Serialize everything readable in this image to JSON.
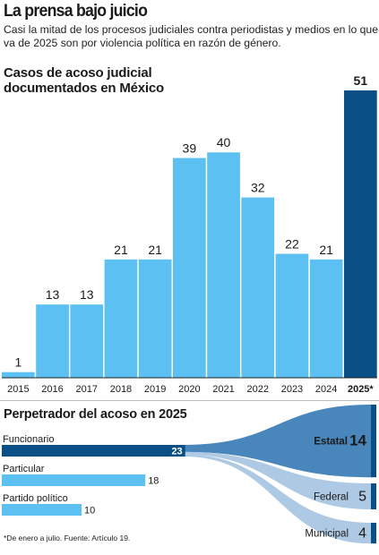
{
  "header": {
    "title": "La prensa bajo juicio",
    "subtitle": "Casi la mitad de los procesos judiciales contra periodistas y medios en lo que va de 2025 son por violencia política en razón de género."
  },
  "colors": {
    "bar": "#5cc0f2",
    "bar_highlight": "#0a4f86",
    "flow_main": "#3e7fb8",
    "flow_light": "#9fc0df",
    "node": "#0a4f86",
    "text": "#1a1a1a"
  },
  "chart_data": [
    {
      "type": "bar",
      "title": "Casos de acoso judicial documentados en México",
      "categories": [
        "2015",
        "2016",
        "2017",
        "2018",
        "2019",
        "2020",
        "2021",
        "2022",
        "2023",
        "2024",
        "2025*"
      ],
      "values": [
        1,
        13,
        13,
        21,
        21,
        39,
        40,
        32,
        22,
        21,
        51
      ],
      "highlight_index": 10,
      "ylim": [
        0,
        51
      ],
      "grid": false
    },
    {
      "type": "sankey",
      "title": "Perpetrador del acoso en 2025",
      "sources": [
        {
          "name": "Funcionario",
          "value": 23
        },
        {
          "name": "Particular",
          "value": 18
        },
        {
          "name": "Partido político",
          "value": 10
        }
      ],
      "targets": [
        {
          "name": "Estatal",
          "value": 14
        },
        {
          "name": "Federal",
          "value": 5
        },
        {
          "name": "Municipal",
          "value": 4
        }
      ],
      "flows": [
        {
          "from": "Funcionario",
          "to": "Estatal",
          "value": 14
        },
        {
          "from": "Funcionario",
          "to": "Federal",
          "value": 5
        },
        {
          "from": "Funcionario",
          "to": "Municipal",
          "value": 4
        }
      ]
    }
  ],
  "footnote": "*De enero a julio. Fuente: Artículo 19."
}
